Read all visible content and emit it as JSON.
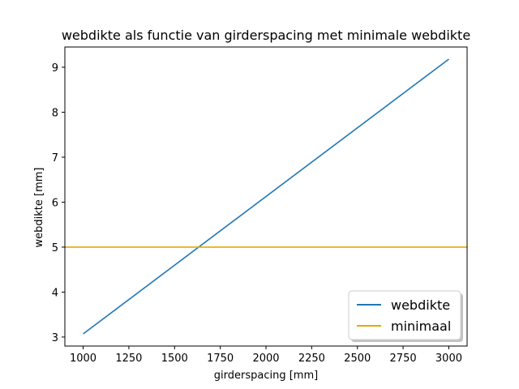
{
  "chart_data": {
    "type": "line",
    "title": "webdikte als functie van girderspacing met minimale webdikte",
    "xlabel": "girderspacing [mm]",
    "ylabel": "webdikte [mm]",
    "xlim": [
      900,
      3100
    ],
    "ylim": [
      2.8,
      9.45
    ],
    "xticks": [
      1000,
      1250,
      1500,
      1750,
      2000,
      2250,
      2500,
      2750,
      3000
    ],
    "yticks": [
      3,
      4,
      5,
      6,
      7,
      8,
      9
    ],
    "grid": false,
    "legend_position": "bottom-right",
    "series": [
      {
        "name": "webdikte",
        "color": "#1f77b4",
        "kind": "line",
        "x": [
          1000,
          3000
        ],
        "y": [
          3.07,
          9.18
        ]
      },
      {
        "name": "minimaal",
        "color": "#e6a800",
        "kind": "hline",
        "y_value": 5.0
      }
    ]
  }
}
